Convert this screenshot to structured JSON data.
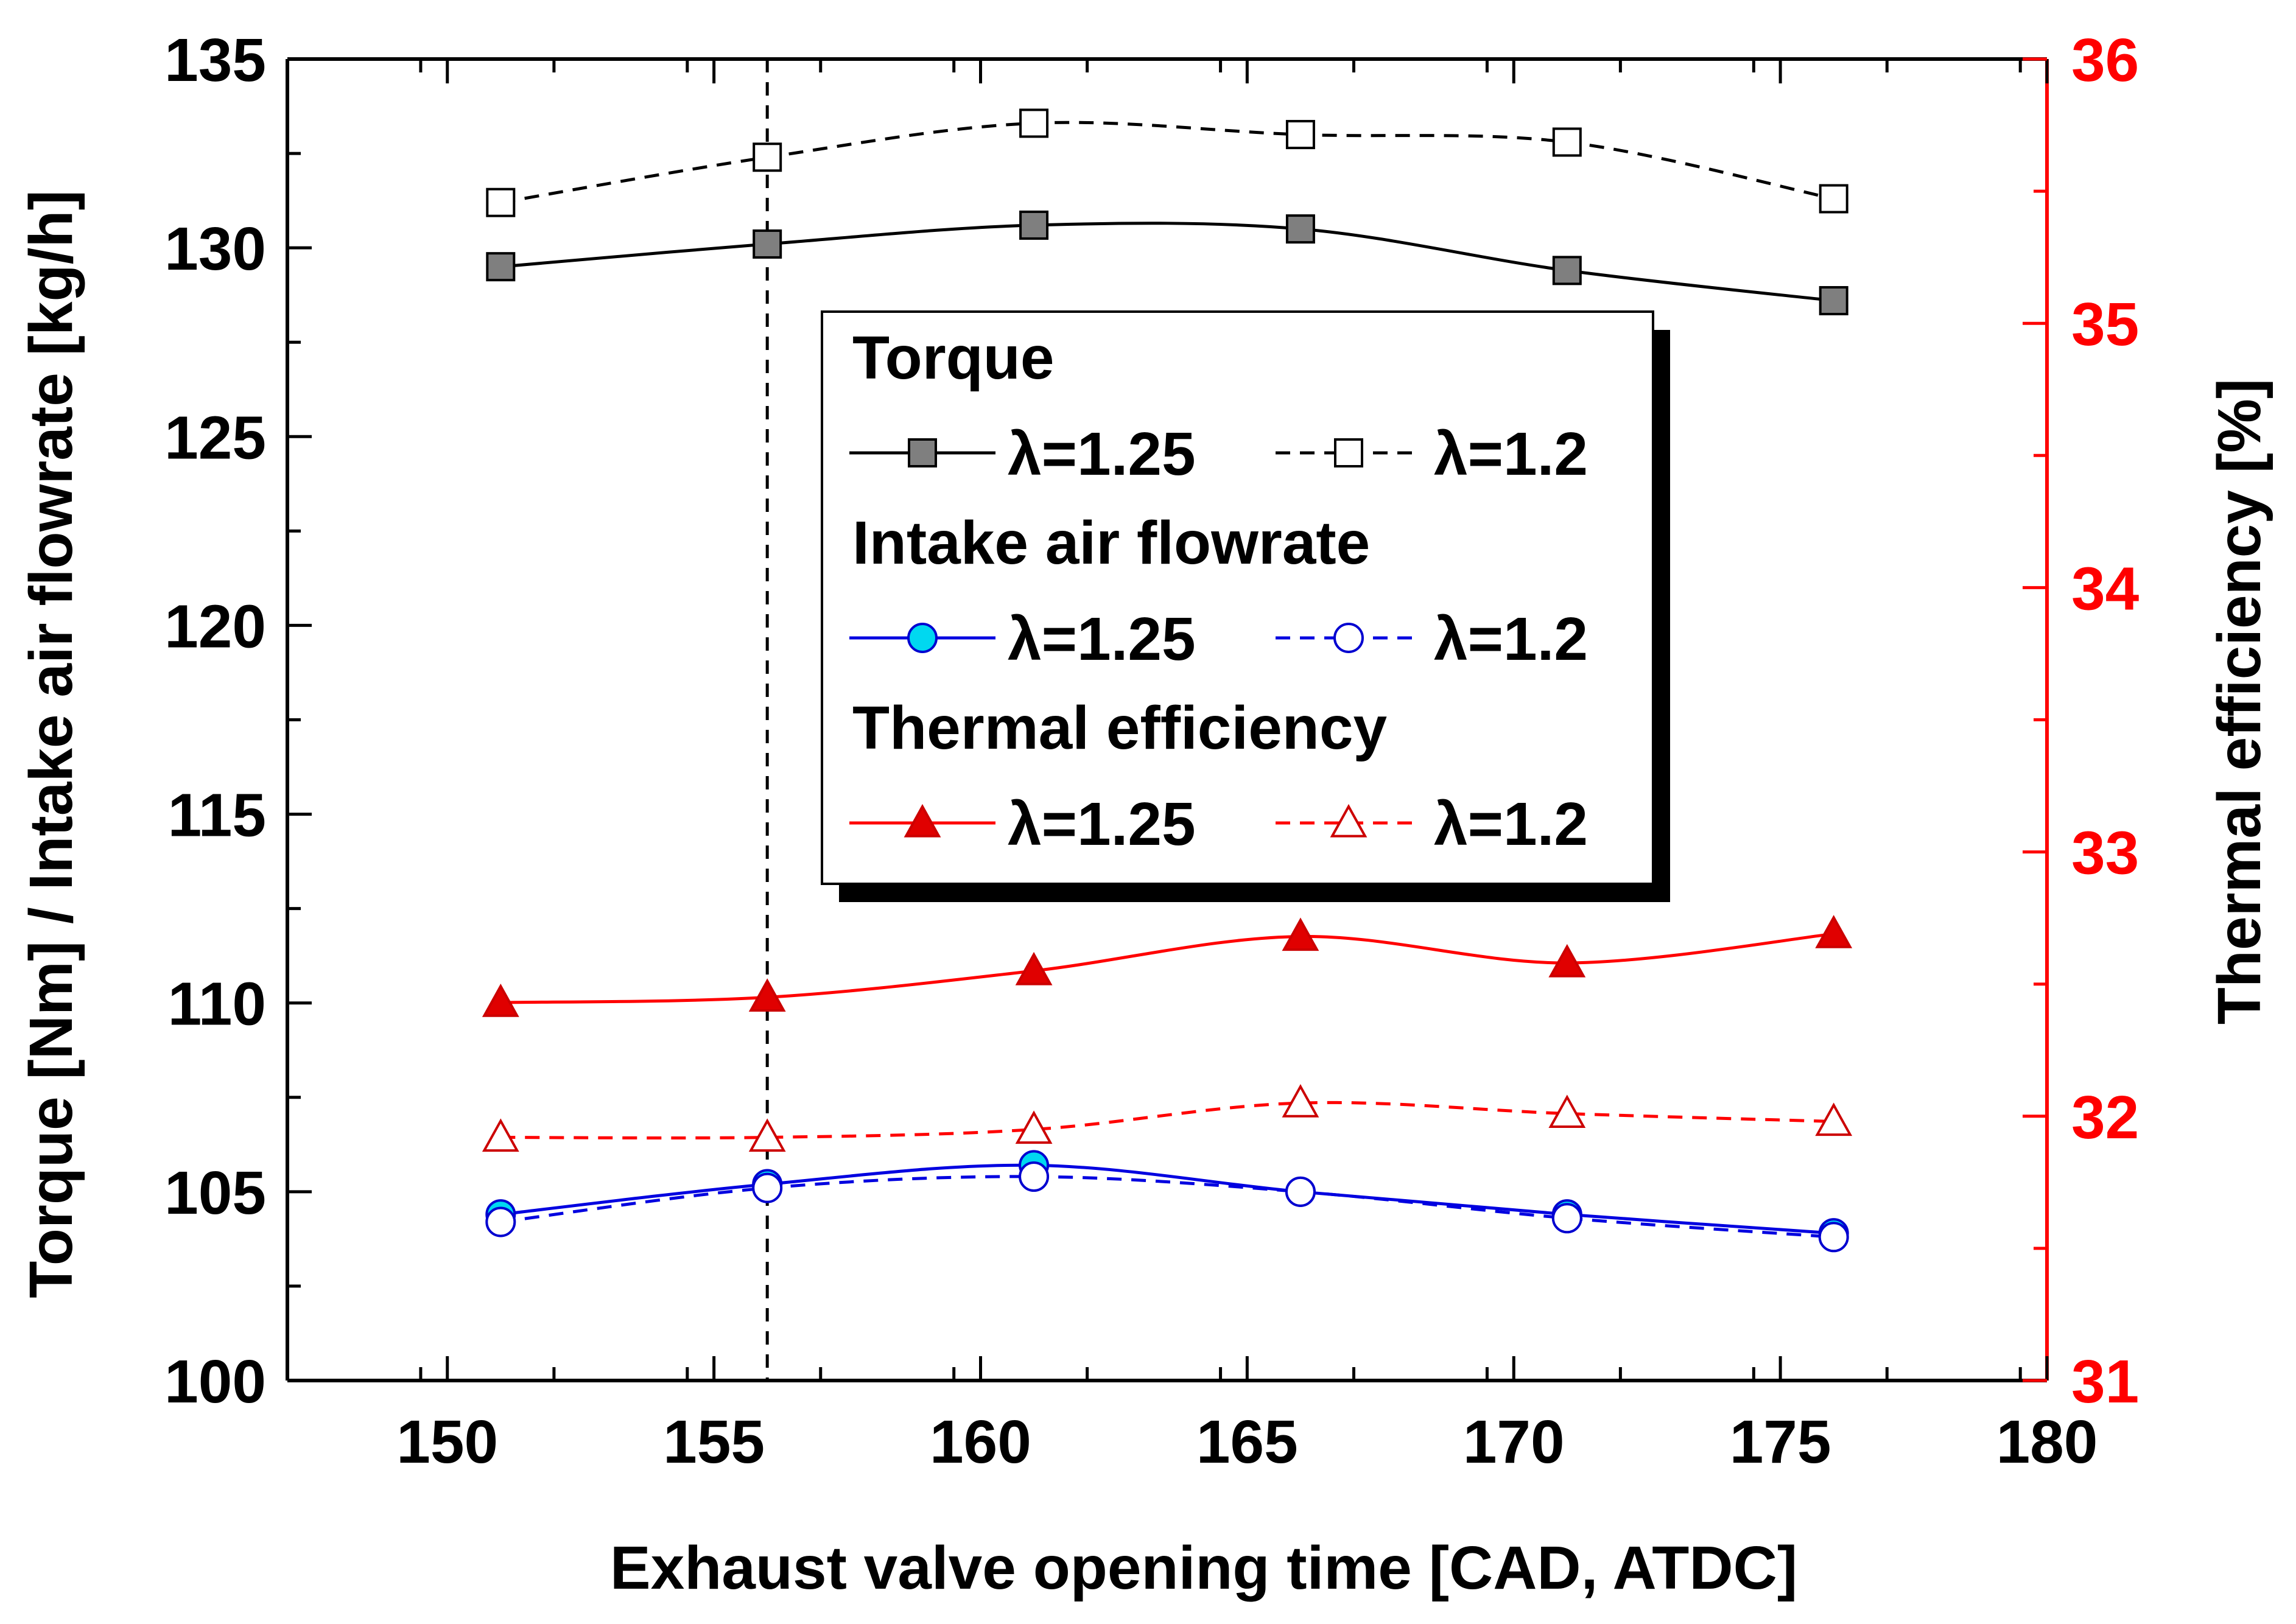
{
  "chart_data": {
    "type": "line",
    "title": "",
    "xlabel": "Exhaust valve opening time [CAD, ATDC]",
    "ylabel_left": "Torque [Nm] / Intake air flowrate [kg/h]",
    "ylabel_right": "Thermal efficiency [%]",
    "xlim": [
      147,
      180
    ],
    "ylim_left": [
      100,
      135
    ],
    "ylim_right": [
      31,
      36
    ],
    "x_ticks": [
      150,
      155,
      160,
      165,
      170,
      175,
      180
    ],
    "x_tick_labels": [
      "150",
      "155",
      "160",
      "165",
      "170",
      "175",
      "180"
    ],
    "y_left_ticks": [
      100,
      105,
      110,
      115,
      120,
      125,
      130,
      135
    ],
    "y_left_tick_labels": [
      "100",
      "105",
      "110",
      "115",
      "120",
      "125",
      "130",
      "135"
    ],
    "y_right_ticks": [
      31,
      32,
      33,
      34,
      35,
      36
    ],
    "y_right_tick_labels": [
      "31",
      "32",
      "33",
      "34",
      "35",
      "36"
    ],
    "vline_x": 156,
    "grid": false,
    "legend_position": "center",
    "legend": {
      "groups": [
        {
          "title": "Torque",
          "entries": [
            {
              "label": "λ=1.25",
              "series": "torque_125"
            },
            {
              "label": "λ=1.2",
              "series": "torque_12"
            }
          ]
        },
        {
          "title": "Intake air flowrate",
          "entries": [
            {
              "label": "λ=1.25",
              "series": "air_125"
            },
            {
              "label": "λ=1.2",
              "series": "air_12"
            }
          ]
        },
        {
          "title": "Thermal efficiency",
          "entries": [
            {
              "label": "λ=1.25",
              "series": "eff_125"
            },
            {
              "label": "λ=1.2",
              "series": "eff_12"
            }
          ]
        }
      ]
    },
    "series": [
      {
        "id": "torque_125",
        "name": "Torque λ=1.25",
        "axis": "left",
        "color": "#000000",
        "dash": false,
        "marker": "square",
        "fill": "#7f7f7f",
        "x": [
          151,
          156,
          161,
          166,
          171,
          176
        ],
        "values": [
          129.5,
          130.1,
          130.6,
          130.5,
          129.4,
          128.6
        ]
      },
      {
        "id": "torque_12",
        "name": "Torque λ=1.2",
        "axis": "left",
        "color": "#000000",
        "dash": true,
        "marker": "square",
        "fill": "#ffffff",
        "x": [
          151,
          156,
          161,
          166,
          171,
          176
        ],
        "values": [
          131.2,
          132.4,
          133.3,
          133.0,
          132.8,
          131.3
        ]
      },
      {
        "id": "air_125",
        "name": "Intake air flowrate λ=1.25",
        "axis": "left",
        "color": "#0000e0",
        "dash": false,
        "marker": "circle",
        "fill": "#00d8f0",
        "x": [
          151,
          156,
          161,
          166,
          171,
          176
        ],
        "values": [
          104.4,
          105.2,
          105.7,
          105.0,
          104.4,
          103.9
        ]
      },
      {
        "id": "air_12",
        "name": "Intake air flowrate λ=1.2",
        "axis": "left",
        "color": "#0000e0",
        "dash": true,
        "marker": "circle",
        "fill": "#ffffff",
        "x": [
          151,
          156,
          161,
          166,
          171,
          176
        ],
        "values": [
          104.2,
          105.1,
          105.4,
          105.0,
          104.3,
          103.8
        ]
      },
      {
        "id": "eff_125",
        "name": "Thermal efficiency λ=1.25",
        "axis": "right",
        "color": "#ff0000",
        "dash": false,
        "marker": "triangle",
        "fill": "#e00000",
        "x": [
          151,
          156,
          161,
          166,
          171,
          176
        ],
        "values": [
          32.43,
          32.45,
          32.55,
          32.68,
          32.58,
          32.69
        ]
      },
      {
        "id": "eff_12",
        "name": "Thermal efficiency λ=1.2",
        "axis": "right",
        "color": "#ff0000",
        "dash": true,
        "marker": "triangle",
        "fill": "#ffffff",
        "x": [
          151,
          156,
          161,
          166,
          171,
          176
        ],
        "values": [
          31.92,
          31.92,
          31.95,
          32.05,
          32.01,
          31.98
        ]
      }
    ]
  }
}
